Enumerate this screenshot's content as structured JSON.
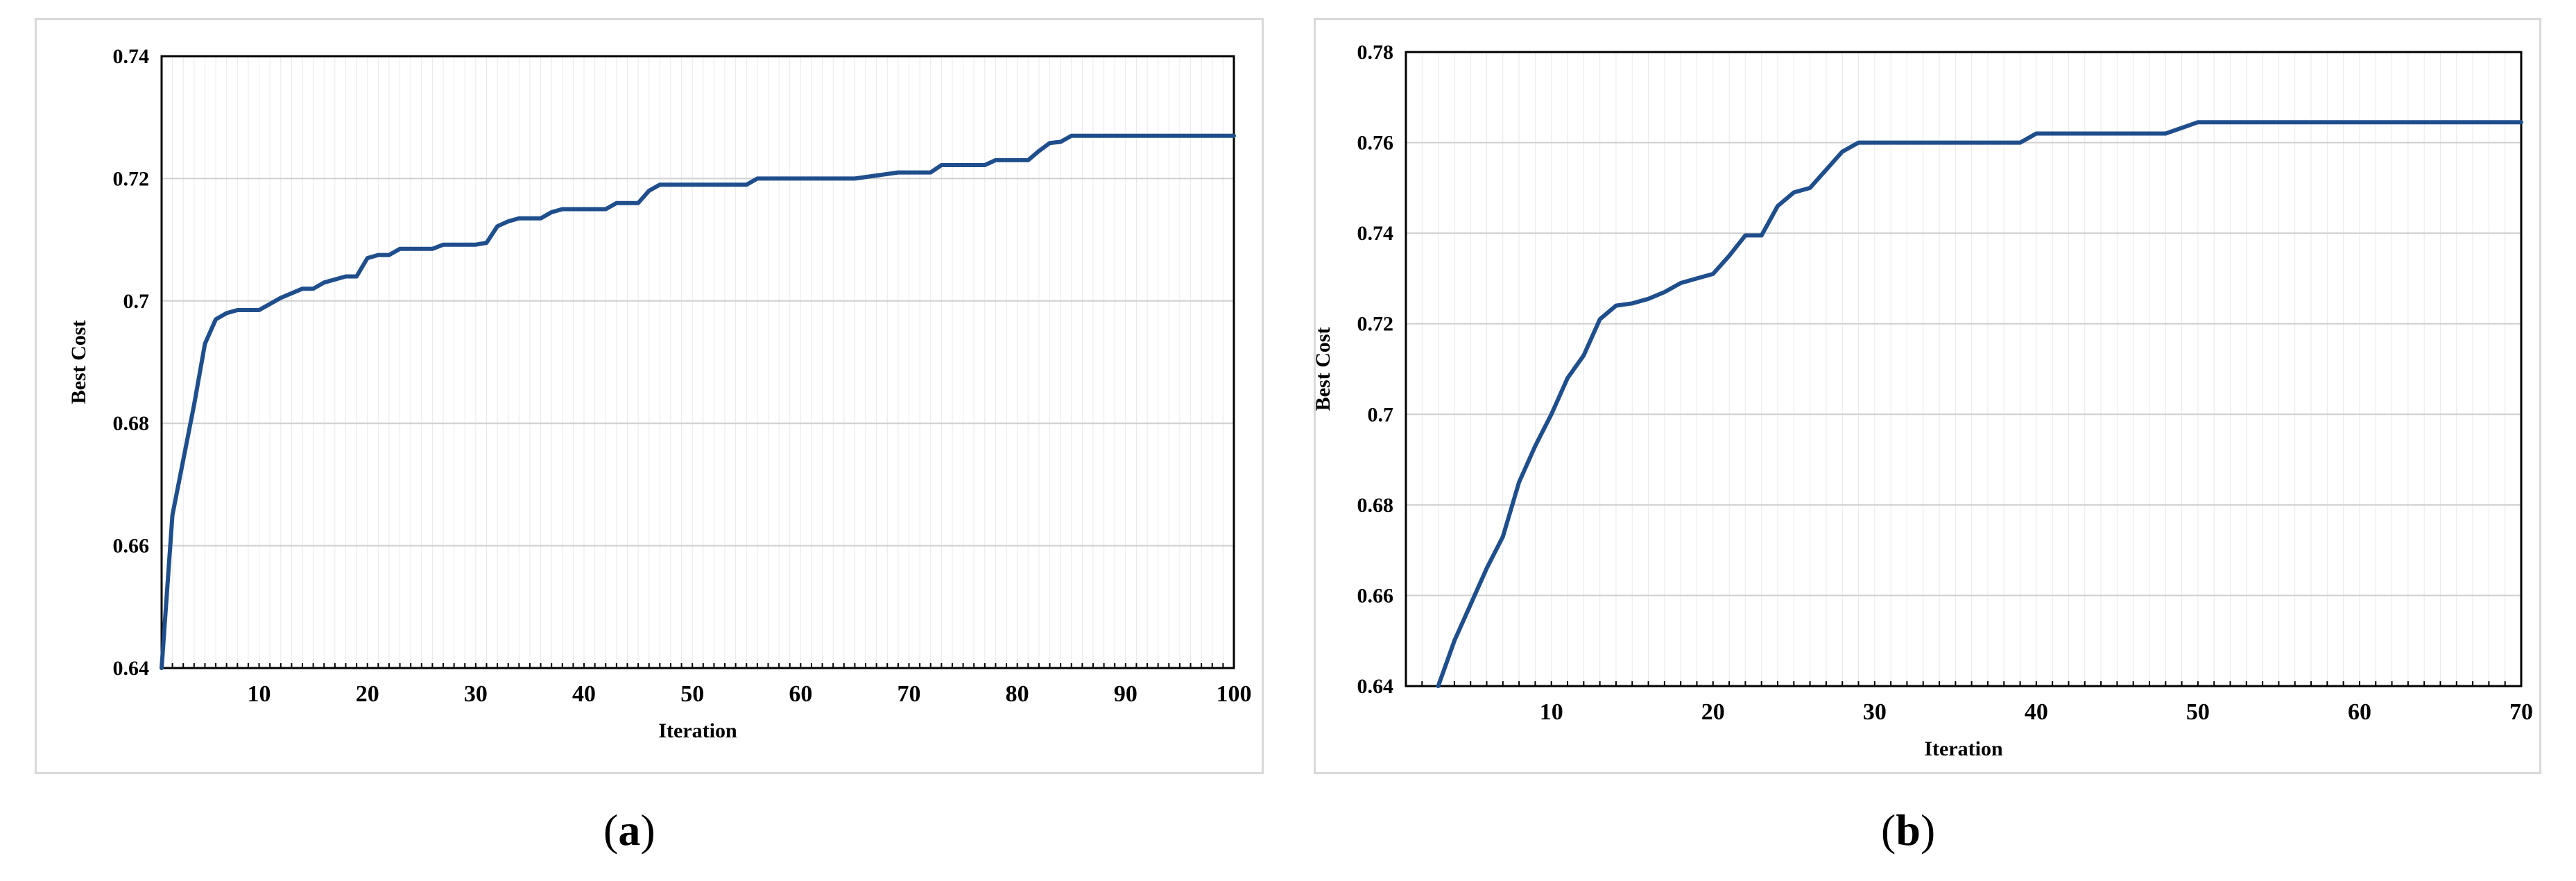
{
  "chart_data": [
    {
      "type": "line",
      "panel_label": "a",
      "xlabel": "Iteration",
      "ylabel": "Best Cost",
      "xlim": [
        1,
        100
      ],
      "ylim": [
        0.64,
        0.74
      ],
      "y_ticks": [
        "0.64",
        "0.66",
        "0.68",
        "0.7",
        "0.72",
        "0.74"
      ],
      "x_ticks": [
        "10",
        "20",
        "30",
        "40",
        "50",
        "60",
        "70",
        "80",
        "90",
        "100"
      ],
      "grid": true,
      "line_color": "#1F4E8C",
      "x": [
        1,
        2,
        3,
        4,
        5,
        6,
        7,
        8,
        9,
        10,
        12,
        14,
        15,
        16,
        17,
        18,
        19,
        20,
        21,
        22,
        23,
        25,
        26,
        27,
        30,
        31,
        32,
        33,
        34,
        35,
        36,
        37,
        38,
        39,
        40,
        41,
        42,
        43,
        44,
        45,
        46,
        47,
        48,
        50,
        55,
        56,
        57,
        65,
        67,
        69,
        70,
        72,
        73,
        74,
        75,
        77,
        78,
        79,
        81,
        82,
        83,
        84,
        85,
        100
      ],
      "y": [
        0.64,
        0.665,
        0.674,
        0.683,
        0.693,
        0.697,
        0.698,
        0.6985,
        0.6985,
        0.6985,
        0.7005,
        0.702,
        0.702,
        0.703,
        0.7035,
        0.704,
        0.704,
        0.707,
        0.7075,
        0.7075,
        0.7085,
        0.7085,
        0.7085,
        0.7092,
        0.7092,
        0.7095,
        0.7122,
        0.713,
        0.7135,
        0.7135,
        0.7135,
        0.7145,
        0.715,
        0.715,
        0.715,
        0.715,
        0.715,
        0.716,
        0.716,
        0.716,
        0.718,
        0.719,
        0.719,
        0.719,
        0.719,
        0.72,
        0.72,
        0.72,
        0.7205,
        0.721,
        0.721,
        0.721,
        0.7222,
        0.7222,
        0.7222,
        0.7222,
        0.723,
        0.723,
        0.723,
        0.7245,
        0.7258,
        0.726,
        0.727,
        0.727
      ]
    },
    {
      "type": "line",
      "panel_label": "b",
      "xlabel": "Iteration",
      "ylabel": "Best Cost",
      "xlim": [
        1,
        70
      ],
      "ylim": [
        0.64,
        0.78
      ],
      "y_ticks": [
        "0.64",
        "0.66",
        "0.68",
        "0.7",
        "0.72",
        "0.74",
        "0.76",
        "0.78"
      ],
      "x_ticks": [
        "10",
        "20",
        "30",
        "40",
        "50",
        "60",
        "70"
      ],
      "grid": true,
      "line_color": "#1F4E8C",
      "x": [
        3,
        4,
        5,
        6,
        7,
        8,
        9,
        10,
        11,
        12,
        13,
        14,
        15,
        16,
        17,
        18,
        19,
        20,
        21,
        22,
        23,
        24,
        25,
        26,
        27,
        28,
        29,
        30,
        35,
        39,
        40,
        48,
        50,
        70
      ],
      "y": [
        0.64,
        0.65,
        0.658,
        0.666,
        0.673,
        0.685,
        0.693,
        0.7,
        0.708,
        0.713,
        0.721,
        0.724,
        0.7245,
        0.7255,
        0.727,
        0.729,
        0.73,
        0.731,
        0.735,
        0.7395,
        0.7395,
        0.746,
        0.749,
        0.75,
        0.754,
        0.758,
        0.76,
        0.76,
        0.76,
        0.76,
        0.762,
        0.762,
        0.7645,
        0.7645
      ]
    }
  ],
  "captions": {
    "a": "a",
    "b": "b"
  }
}
